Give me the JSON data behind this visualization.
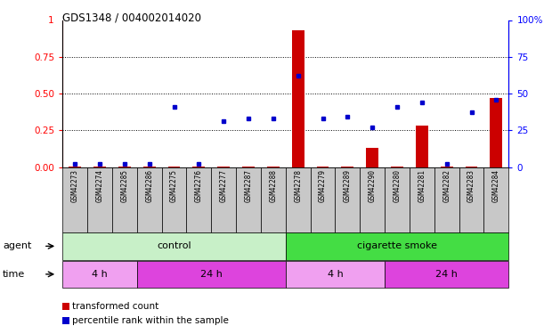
{
  "title": "GDS1348 / 004002014020",
  "samples": [
    "GSM42273",
    "GSM42274",
    "GSM42285",
    "GSM42286",
    "GSM42275",
    "GSM42276",
    "GSM42277",
    "GSM42287",
    "GSM42288",
    "GSM42278",
    "GSM42279",
    "GSM42289",
    "GSM42290",
    "GSM42280",
    "GSM42281",
    "GSM42282",
    "GSM42283",
    "GSM42284"
  ],
  "transformed_count": [
    0.005,
    0.005,
    0.005,
    0.005,
    0.005,
    0.005,
    0.005,
    0.005,
    0.005,
    0.93,
    0.005,
    0.005,
    0.13,
    0.005,
    0.28,
    0.005,
    0.005,
    0.47
  ],
  "percentile_rank": [
    0.02,
    0.02,
    0.02,
    0.02,
    0.41,
    0.02,
    0.31,
    0.33,
    0.33,
    0.62,
    0.33,
    0.34,
    0.27,
    0.41,
    0.44,
    0.02,
    0.37,
    0.46
  ],
  "agent_groups": [
    {
      "label": "control",
      "start": 0,
      "end": 9,
      "color": "#C8F0C8"
    },
    {
      "label": "cigarette smoke",
      "start": 9,
      "end": 18,
      "color": "#44DD44"
    }
  ],
  "time_groups": [
    {
      "label": "4 h",
      "start": 0,
      "end": 3,
      "color": "#F0A0F0"
    },
    {
      "label": "24 h",
      "start": 3,
      "end": 9,
      "color": "#DD44DD"
    },
    {
      "label": "4 h",
      "start": 9,
      "end": 13,
      "color": "#F0A0F0"
    },
    {
      "label": "24 h",
      "start": 13,
      "end": 18,
      "color": "#DD44DD"
    }
  ],
  "ylim_left": [
    0,
    1.0
  ],
  "ylim_right": [
    0,
    100
  ],
  "yticks_left": [
    0,
    0.25,
    0.5,
    0.75
  ],
  "yticks_right": [
    0,
    25,
    50,
    75,
    100
  ],
  "bar_color_red": "#CC0000",
  "dot_color_blue": "#0000CC",
  "bg_color": "#FFFFFF",
  "sample_bg": "#C8C8C8"
}
